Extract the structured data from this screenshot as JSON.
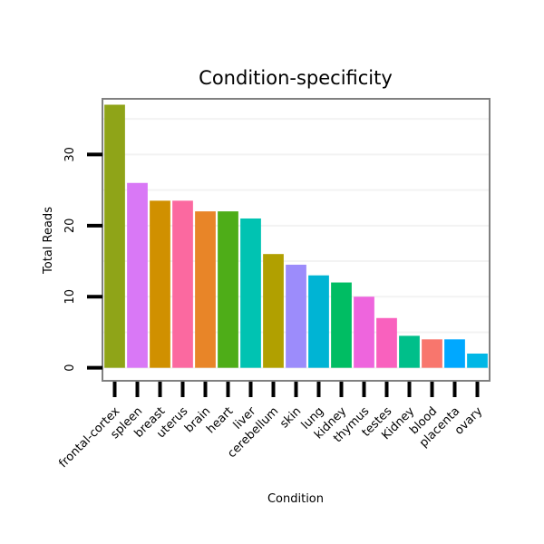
{
  "chart_data": {
    "type": "bar",
    "title": "Condition-specificity",
    "xlabel": "Condition",
    "ylabel": "Total Reads",
    "ylim": [
      -1.7,
      37.7
    ],
    "yticks": [
      0,
      10,
      20,
      30
    ],
    "grid": true,
    "categories": [
      "frontal-cortex",
      "spleen",
      "breast",
      "uterus",
      "brain",
      "heart",
      "liver",
      "cerebellum",
      "skin",
      "lung",
      "kidney",
      "thymus",
      "testes",
      "Kidney",
      "blood",
      "placenta",
      "ovary"
    ],
    "values": [
      37,
      26,
      23.5,
      23.5,
      22,
      22,
      21,
      16,
      14.5,
      13,
      12,
      10,
      7,
      4.5,
      4,
      4,
      2
    ],
    "colors": [
      "#8fa418",
      "#d978f6",
      "#d09000",
      "#fb69a0",
      "#e88528",
      "#4ead18",
      "#00c3b2",
      "#b1a000",
      "#9c8cfb",
      "#00b4d4",
      "#00bd63",
      "#ee65dd",
      "#f961be",
      "#00bf8a",
      "#f8766d",
      "#00a8ff",
      "#00b7e6"
    ]
  }
}
